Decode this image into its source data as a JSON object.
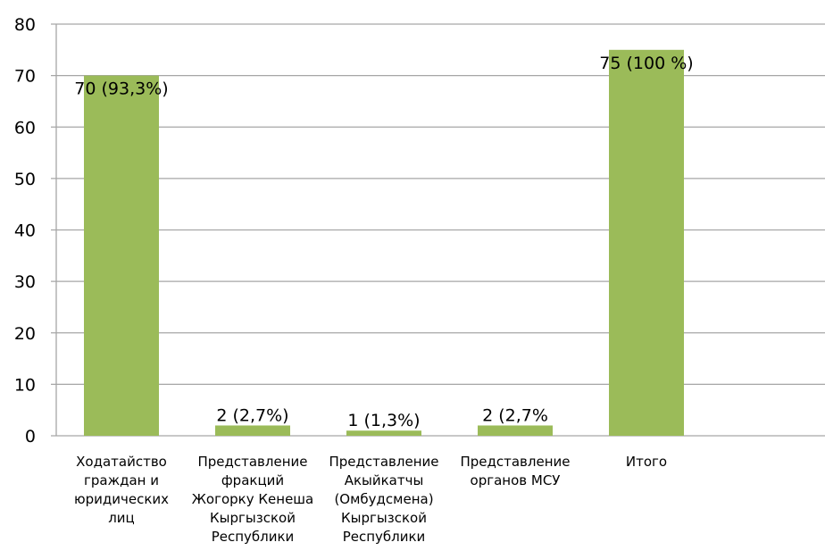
{
  "chart_data": {
    "type": "bar",
    "title": "",
    "xlabel": "",
    "ylabel": "",
    "ylim": [
      0,
      80
    ],
    "yticks": [
      0,
      10,
      20,
      30,
      40,
      50,
      60,
      70,
      80
    ],
    "grid": true,
    "legend": "none",
    "bar_color": "#9bbb59",
    "grid_color": "#a6a6a6",
    "categories": [
      [
        "Ходатайство",
        "граждан и",
        "юридических",
        "лиц"
      ],
      [
        "Представление",
        "фракций",
        "Жогорку Кенеша",
        "Кыргызской",
        "Республики"
      ],
      [
        "Представление",
        "Акыйкатчы",
        "(Омбудсмена)",
        "Кыргызской",
        "Республики"
      ],
      [
        "Представление",
        "органов МСУ"
      ],
      [
        "Итого"
      ]
    ],
    "values": [
      70,
      2,
      1,
      2,
      75
    ],
    "data_labels": [
      "70 (93,3%)",
      "2 (2,7%)",
      "1 (1,3%)",
      "2 (2,7%",
      "75 (100 %)"
    ]
  }
}
